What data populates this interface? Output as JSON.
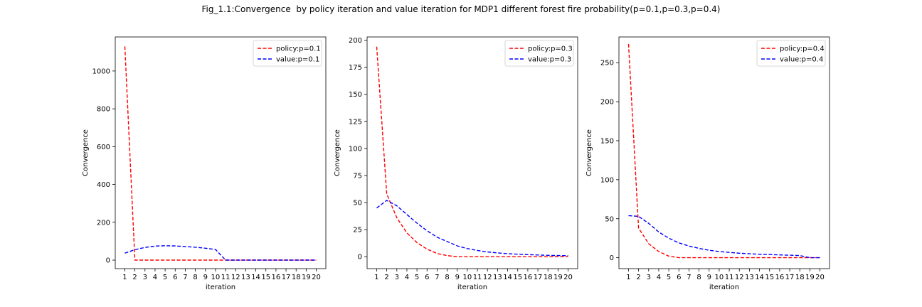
{
  "figure": {
    "title": "Fig_1.1:Convergence  by policy iteration and value iteration for MDP1 different forest fire probability(p=0.1,p=0.3,p=0.4)"
  },
  "chart_data": [
    {
      "type": "line",
      "xlabel": "iteration",
      "ylabel": "Convergence",
      "x": [
        1,
        2,
        3,
        4,
        5,
        6,
        7,
        8,
        9,
        10,
        11,
        12,
        13,
        14,
        15,
        16,
        17,
        18,
        19,
        20
      ],
      "xticks": [
        "1",
        "2",
        "3",
        "4",
        "5",
        "6",
        "7",
        "8",
        "9",
        "10",
        "11",
        "12",
        "13",
        "14",
        "15",
        "16",
        "17",
        "18",
        "19",
        "20"
      ],
      "ylim": [
        -45,
        1180
      ],
      "yticks": [
        0,
        200,
        400,
        600,
        800,
        1000
      ],
      "legend_position": "top-right",
      "grid": false,
      "series": [
        {
          "name": "policy:p=0.1",
          "color": "#ff0000",
          "style": "dashed",
          "values": [
            1130,
            0,
            0,
            0,
            0,
            0,
            0,
            0,
            0,
            0,
            0,
            0,
            0,
            0,
            0,
            0,
            0,
            0,
            0,
            0
          ]
        },
        {
          "name": "value:p=0.1",
          "color": "#0000ff",
          "style": "dashed",
          "values": [
            37,
            55,
            67,
            74,
            76,
            75,
            72,
            68,
            63,
            56,
            0,
            0,
            0,
            0,
            0,
            0,
            0,
            0,
            0,
            0
          ]
        }
      ]
    },
    {
      "type": "line",
      "xlabel": "iteration",
      "ylabel": "Convergence",
      "x": [
        1,
        2,
        3,
        4,
        5,
        6,
        7,
        8,
        9,
        10,
        11,
        12,
        13,
        14,
        15,
        16,
        17,
        18,
        19,
        20
      ],
      "xticks": [
        "1",
        "2",
        "3",
        "4",
        "5",
        "6",
        "7",
        "8",
        "9",
        "10",
        "11",
        "12",
        "13",
        "14",
        "15",
        "16",
        "17",
        "18",
        "19",
        "20"
      ],
      "ylim": [
        -11,
        203
      ],
      "yticks": [
        0,
        25,
        50,
        75,
        100,
        125,
        150,
        175,
        200
      ],
      "legend_position": "top-right",
      "grid": false,
      "series": [
        {
          "name": "policy:p=0.3",
          "color": "#ff0000",
          "style": "dashed",
          "values": [
            194,
            58,
            36,
            22,
            13,
            7,
            3,
            1,
            0,
            0,
            0,
            0,
            0,
            0,
            0,
            0,
            0,
            0,
            0,
            0
          ]
        },
        {
          "name": "value:p=0.3",
          "color": "#0000ff",
          "style": "dashed",
          "values": [
            45,
            52,
            47,
            39,
            31,
            24,
            18,
            14,
            10,
            7.5,
            5.8,
            4.4,
            3.5,
            2.8,
            2.3,
            1.9,
            1.6,
            1.3,
            1.1,
            1.0
          ]
        }
      ]
    },
    {
      "type": "line",
      "xlabel": "iteration",
      "ylabel": "Convergence",
      "x": [
        1,
        2,
        3,
        4,
        5,
        6,
        7,
        8,
        9,
        10,
        11,
        12,
        13,
        14,
        15,
        16,
        17,
        18,
        19,
        20
      ],
      "xticks": [
        "1",
        "2",
        "3",
        "4",
        "5",
        "6",
        "7",
        "8",
        "9",
        "10",
        "11",
        "12",
        "13",
        "14",
        "15",
        "16",
        "17",
        "18",
        "19",
        "20"
      ],
      "ylim": [
        -14,
        283
      ],
      "yticks": [
        0,
        50,
        100,
        150,
        200,
        250
      ],
      "legend_position": "top-right",
      "grid": false,
      "series": [
        {
          "name": "policy:p=0.4",
          "color": "#ff0000",
          "style": "dashed",
          "values": [
            274,
            38,
            18,
            8,
            2,
            0,
            0,
            0,
            0,
            0,
            0,
            0,
            0,
            0,
            0,
            0,
            0,
            0,
            0,
            0
          ]
        },
        {
          "name": "value:p=0.4",
          "color": "#0000ff",
          "style": "dashed",
          "values": [
            54,
            53,
            44,
            33,
            25,
            19,
            15,
            12,
            9.5,
            8,
            6.8,
            5.8,
            5,
            4.4,
            4,
            3.6,
            3.2,
            2.8,
            0,
            0
          ]
        }
      ]
    }
  ]
}
